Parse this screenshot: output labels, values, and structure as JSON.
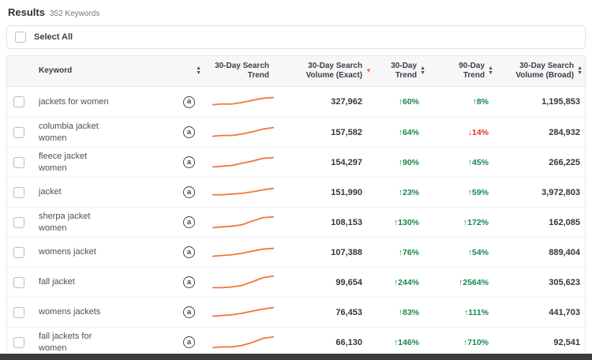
{
  "results": {
    "title": "Results",
    "count": "352 Keywords"
  },
  "select_all": {
    "label": "Select All"
  },
  "icons": {
    "sort_asc": "▲",
    "sort_desc": "▼",
    "amazon_badge": "a"
  },
  "colors": {
    "positive": "#17884b",
    "negative": "#e02f2f",
    "sparkline": "#f0783a",
    "sort_active": "#f0783a"
  },
  "table": {
    "headers": {
      "keyword": "Keyword",
      "search_trend": "30-Day Search Trend",
      "volume_exact": "30-Day Search Volume (Exact)",
      "trend_30": "30-Day Trend",
      "trend_90": "90-Day Trend",
      "volume_broad": "30-Day Search Volume (Broad)"
    },
    "rows": [
      {
        "keyword": "jackets for women",
        "spark": "2,15 14,14 28,14 42,12 56,9 72,6 86,5",
        "volume_exact": "327,962",
        "trend_30": "↑60%",
        "trend_30_dir": "up",
        "trend_90": "↑8%",
        "trend_90_dir": "up",
        "volume_broad": "1,195,853"
      },
      {
        "keyword": "columbia jacket women",
        "spark": "2,16 14,15 28,15 42,13 56,10 72,6 86,4",
        "volume_exact": "157,582",
        "trend_30": "↑64%",
        "trend_30_dir": "up",
        "trend_90": "↓14%",
        "trend_90_dir": "down",
        "volume_broad": "284,932"
      },
      {
        "keyword": "fleece jacket women",
        "spark": "2,17 14,16 28,15 42,12 56,9 72,5 86,4",
        "volume_exact": "154,297",
        "trend_30": "↑90%",
        "trend_30_dir": "up",
        "trend_90": "↑45%",
        "trend_90_dir": "up",
        "volume_broad": "266,225"
      },
      {
        "keyword": "jacket",
        "spark": "2,14 14,14 28,13 42,12 56,10 72,7 86,5",
        "volume_exact": "151,990",
        "trend_30": "↑23%",
        "trend_30_dir": "up",
        "trend_90": "↑59%",
        "trend_90_dir": "up",
        "volume_broad": "3,972,803"
      },
      {
        "keyword": "sherpa jacket women",
        "spark": "2,18 14,17 28,16 42,14 56,9 72,4 86,3",
        "volume_exact": "108,153",
        "trend_30": "↑130%",
        "trend_30_dir": "up",
        "trend_90": "↑172%",
        "trend_90_dir": "up",
        "volume_broad": "162,085"
      },
      {
        "keyword": "womens jacket",
        "spark": "2,16 14,15 28,14 42,12 56,9 72,6 86,5",
        "volume_exact": "107,388",
        "trend_30": "↑76%",
        "trend_30_dir": "up",
        "trend_90": "↑54%",
        "trend_90_dir": "up",
        "volume_broad": "889,404"
      },
      {
        "keyword": "fall jacket",
        "spark": "2,18 14,18 28,17 42,15 56,10 72,4 86,2",
        "volume_exact": "99,654",
        "trend_30": "↑244%",
        "trend_30_dir": "up",
        "trend_90": "↑2564%",
        "trend_90_dir": "up",
        "volume_broad": "305,623"
      },
      {
        "keyword": "womens jackets",
        "spark": "2,16 14,15 28,14 42,12 56,9 72,6 86,4",
        "volume_exact": "76,453",
        "trend_30": "↑83%",
        "trend_30_dir": "up",
        "trend_90": "↑111%",
        "trend_90_dir": "up",
        "volume_broad": "441,703"
      },
      {
        "keyword": "fall jackets for women",
        "spark": "2,18 14,17 28,17 42,15 56,11 72,5 86,3",
        "volume_exact": "66,130",
        "trend_30": "↑146%",
        "trend_30_dir": "up",
        "trend_90": "↑710%",
        "trend_90_dir": "up",
        "volume_broad": "92,541"
      }
    ]
  }
}
